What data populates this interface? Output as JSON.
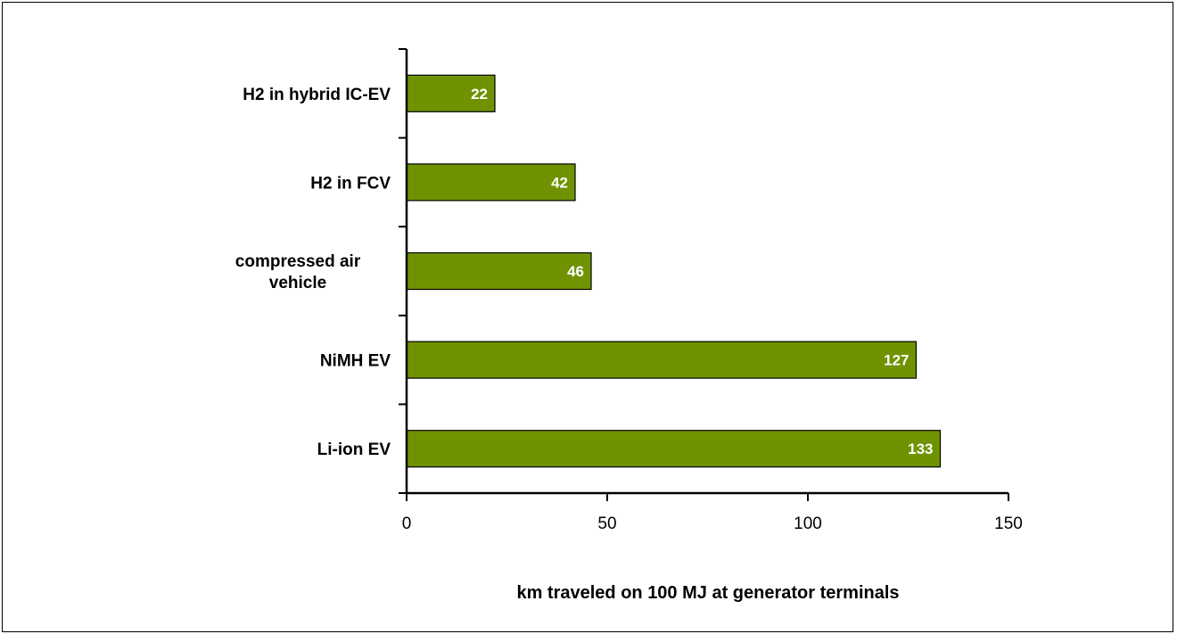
{
  "chart_data": {
    "type": "bar",
    "orientation": "horizontal",
    "categories": [
      [
        "H2 in hybrid IC-EV"
      ],
      [
        "H2 in FCV"
      ],
      [
        "compressed air",
        "vehicle"
      ],
      [
        "NiMH EV"
      ],
      [
        "Li-ion EV"
      ]
    ],
    "values": [
      22,
      42,
      46,
      127,
      133
    ],
    "value_labels": [
      "22",
      "42",
      "46",
      "127",
      "133"
    ],
    "xlabel": "km traveled on 100 MJ at generator terminals",
    "ylabel": "",
    "title": "",
    "xlim": [
      0,
      150
    ],
    "x_ticks": [
      0,
      50,
      100,
      150
    ],
    "x_tick_labels": [
      "0",
      "50",
      "100",
      "150"
    ],
    "grid": false,
    "legend": "none",
    "colors": {
      "bar_fill": "#6F9300",
      "bar_stroke": "#000000",
      "value_text": "#ffffff",
      "axis": "#000000"
    }
  }
}
